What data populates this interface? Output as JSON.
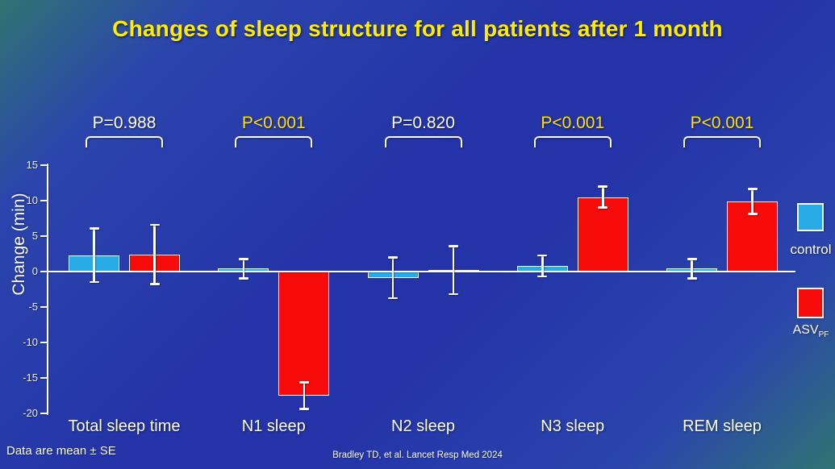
{
  "slide": {
    "title": "Changes of sleep structure for all patients after 1 month",
    "footnote": "Data are mean ± SE",
    "citation": "Bradley TD, et al. Lancet Resp Med 2024"
  },
  "legend": {
    "control_label": "control",
    "asv_label": "ASV",
    "asv_subscript": "PF"
  },
  "colors": {
    "background_teal": "#2F7472",
    "background_blue": "#2433A8",
    "title": "#FFEC00",
    "p_significant": "#FFE100",
    "p_not_significant": "#FFFFFF",
    "axis": "#FFFFFF",
    "control_bar": "#29ABE8",
    "asv_bar": "#F60A0A"
  },
  "chart_data": {
    "type": "bar",
    "title": "Changes of sleep structure for all patients after 1 month",
    "xlabel": "",
    "ylabel": "Change (min)",
    "ylim": [
      -20,
      15
    ],
    "ytick_step": 5,
    "grid": false,
    "legend_position": "right",
    "error_bars": "SE",
    "categories": [
      "Total sleep time",
      "N1 sleep",
      "N2 sleep",
      "N3 sleep",
      "REM sleep"
    ],
    "p_values": [
      {
        "label": "P=0.988",
        "significant": false
      },
      {
        "label": "P<0.001",
        "significant": true
      },
      {
        "label": "P=0.820",
        "significant": false
      },
      {
        "label": "P<0.001",
        "significant": true
      },
      {
        "label": "P<0.001",
        "significant": true
      }
    ],
    "series": [
      {
        "name": "control",
        "color": "#29ABE8",
        "values": [
          2.3,
          0.4,
          -0.9,
          0.8,
          0.4
        ],
        "se": [
          3.8,
          1.4,
          2.9,
          1.5,
          1.4
        ]
      },
      {
        "name": "ASV_PF",
        "color": "#F60A0A",
        "values": [
          2.4,
          -17.5,
          0.2,
          10.5,
          9.9
        ],
        "se": [
          4.2,
          1.9,
          3.4,
          1.5,
          1.8
        ]
      }
    ]
  }
}
